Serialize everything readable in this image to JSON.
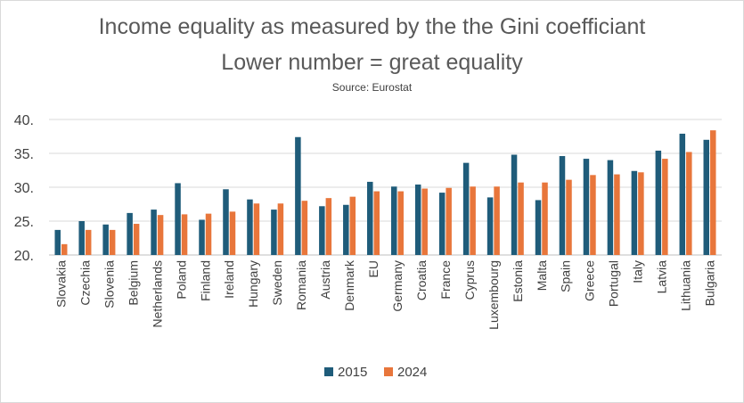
{
  "chart_data": {
    "type": "bar",
    "title": "Income equality as measured by the the Gini coefficiant",
    "subtitle": "Lower number = great equality",
    "source": "Source: Eurostat",
    "xlabel": "",
    "ylabel": "",
    "ylim": [
      20,
      40
    ],
    "yticks": [
      "20.",
      "25.",
      "30.",
      "35.",
      "40."
    ],
    "grid": true,
    "legend_position": "bottom",
    "categories": [
      "Slovakia",
      "Czechia",
      "Slovenia",
      "Belgium",
      "Netherlands",
      "Poland",
      "Finland",
      "Ireland",
      "Hungary",
      "Sweden",
      "Romania",
      "Austria",
      "Denmark",
      "EU",
      "Germany",
      "Croatia",
      "France",
      "Cyprus",
      "Luxembourg",
      "Estonia",
      "Malta",
      "Spain",
      "Greece",
      "Portugal",
      "Italy",
      "Latvia",
      "Lithuania",
      "Bulgaria"
    ],
    "series": [
      {
        "name": "2015",
        "color": "#1f5c7a",
        "values": [
          23.7,
          25.0,
          24.5,
          26.2,
          26.7,
          30.6,
          25.2,
          29.7,
          28.2,
          26.7,
          37.4,
          27.2,
          27.4,
          30.8,
          30.1,
          30.4,
          29.2,
          33.6,
          28.5,
          34.8,
          28.1,
          34.6,
          34.2,
          34.0,
          32.4,
          35.4,
          37.9,
          37.0
        ]
      },
      {
        "name": "2024",
        "color": "#e8763b",
        "values": [
          21.6,
          23.7,
          23.7,
          24.6,
          25.9,
          26.0,
          26.1,
          26.4,
          27.6,
          27.6,
          28.0,
          28.4,
          28.6,
          29.4,
          29.4,
          29.8,
          29.9,
          30.1,
          30.1,
          30.7,
          30.7,
          31.1,
          31.8,
          31.9,
          32.2,
          34.2,
          35.2,
          38.4
        ]
      }
    ]
  }
}
